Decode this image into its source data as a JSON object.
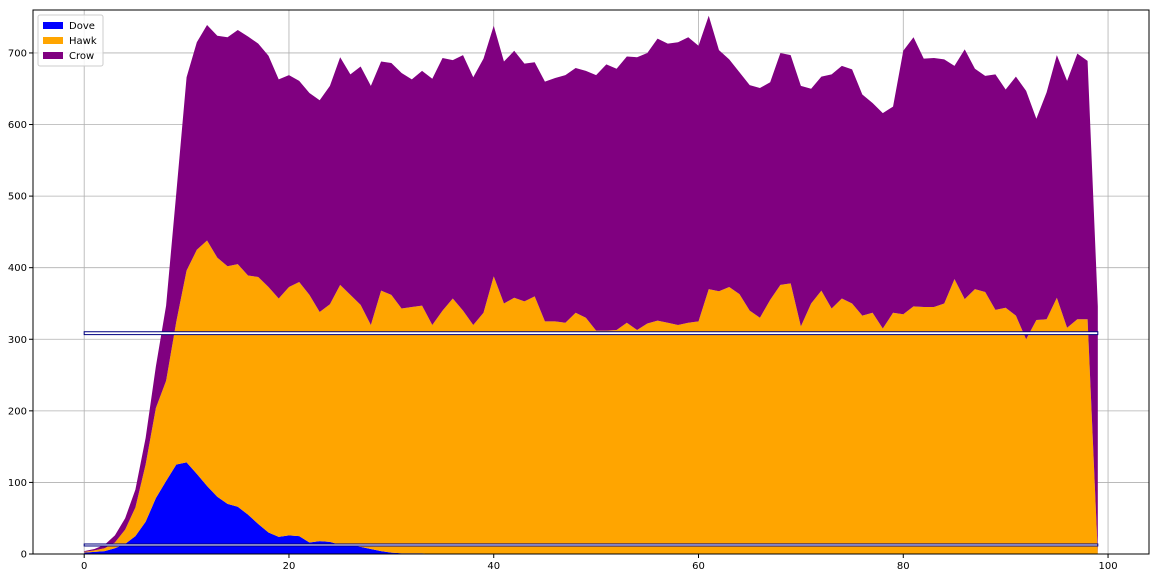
{
  "chart_data": {
    "type": "area",
    "stacked": true,
    "x_start": 0,
    "x_step": 1,
    "xlim": [
      -5,
      104
    ],
    "ylim": [
      0,
      760
    ],
    "xticks": [
      0,
      20,
      40,
      60,
      80,
      100
    ],
    "yticks": [
      0,
      100,
      200,
      300,
      400,
      500,
      600,
      700
    ],
    "grid": true,
    "legend_position": "top-left",
    "series": [
      {
        "name": "Dove",
        "color": "#0000ff",
        "values": [
          2,
          3,
          4,
          8,
          14,
          25,
          45,
          78,
          102,
          125,
          128,
          112,
          95,
          80,
          70,
          66,
          55,
          42,
          30,
          24,
          26,
          25,
          16,
          18,
          17,
          13,
          12,
          10,
          7,
          4,
          2,
          1,
          1,
          1,
          0,
          0,
          0,
          0,
          0,
          0,
          0,
          0,
          0,
          0,
          0,
          0,
          0,
          0,
          0,
          0,
          0,
          0,
          0,
          0,
          0,
          0,
          0,
          0,
          0,
          0,
          0,
          0,
          0,
          0,
          0,
          0,
          0,
          0,
          0,
          0,
          0,
          0,
          0,
          0,
          0,
          0,
          0,
          0,
          0,
          0,
          0,
          0,
          0,
          0,
          0,
          0,
          0,
          0,
          0,
          0,
          0,
          0,
          0,
          0,
          0,
          0,
          0,
          0,
          0,
          0
        ]
      },
      {
        "name": "Hawk",
        "color": "#ffa500",
        "values": [
          1,
          2,
          4,
          8,
          20,
          40,
          80,
          126,
          140,
          200,
          268,
          313,
          343,
          334,
          332,
          339,
          334,
          345,
          343,
          333,
          347,
          355,
          346,
          320,
          332,
          363,
          350,
          338,
          313,
          364,
          360,
          342,
          344,
          346,
          320,
          340,
          357,
          340,
          320,
          337,
          388,
          350,
          358,
          353,
          360,
          325,
          325,
          323,
          337,
          330,
          312,
          312,
          313,
          323,
          313,
          322,
          326,
          323,
          320,
          323,
          325,
          370,
          367,
          373,
          363,
          340,
          330,
          355,
          376,
          378,
          318,
          350,
          368,
          343,
          357,
          350,
          333,
          337,
          315,
          337,
          335,
          346,
          345,
          345,
          350,
          384,
          356,
          370,
          366,
          341,
          344,
          333,
          300,
          327,
          328,
          358,
          316,
          328,
          328,
          0
        ]
      },
      {
        "name": "Crow",
        "color": "#800080",
        "values": [
          1,
          2,
          5,
          10,
          16,
          25,
          37,
          58,
          105,
          180,
          270,
          290,
          301,
          310,
          320,
          327,
          334,
          326,
          323,
          306,
          296,
          281,
          282,
          296,
          305,
          318,
          308,
          333,
          334,
          320,
          324,
          329,
          318,
          328,
          344,
          353,
          333,
          357,
          346,
          355,
          350,
          338,
          345,
          332,
          327,
          335,
          340,
          346,
          342,
          345,
          357,
          372,
          365,
          372,
          381,
          378,
          394,
          390,
          395,
          399,
          385,
          382,
          337,
          318,
          310,
          315,
          321,
          304,
          324,
          319,
          336,
          300,
          299,
          327,
          325,
          327,
          309,
          293,
          301,
          288,
          368,
          376,
          347,
          348,
          341,
          298,
          349,
          308,
          302,
          329,
          305,
          334,
          347,
          281,
          317,
          339,
          345,
          371,
          361,
          346
        ]
      }
    ]
  }
}
